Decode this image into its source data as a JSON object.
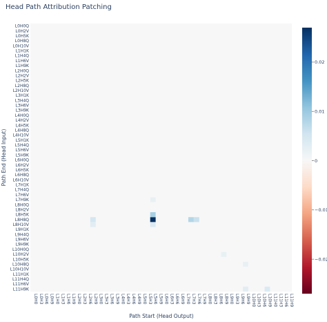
{
  "chart_data": {
    "type": "heatmap",
    "title": "Head Path Attribution Patching",
    "xlabel": "Path Start (Head Output)",
    "ylabel": "Path End (Head Input)",
    "y_labels": [
      "L0H0Q",
      "L0H2V",
      "L0H5K",
      "L0H8Q",
      "L0H10V",
      "L1H1K",
      "L1H4Q",
      "L1H6V",
      "L1H9K",
      "L2H0Q",
      "L2H2V",
      "L2H5K",
      "L2H8Q",
      "L2H10V",
      "L3H1K",
      "L3H4Q",
      "L3H6V",
      "L3H9K",
      "L4H0Q",
      "L4H2V",
      "L4H5K",
      "L4H8Q",
      "L4H10V",
      "L5H1K",
      "L5H4Q",
      "L5H6V",
      "L5H9K",
      "L6H0Q",
      "L6H2V",
      "L6H5K",
      "L6H8Q",
      "L6H10V",
      "L7H1K",
      "L7H4Q",
      "L7H6V",
      "L7H9K",
      "L8H0Q",
      "L8H2V",
      "L8H5K",
      "L8H8Q",
      "L8H10V",
      "L9H1K",
      "L9H4Q",
      "L9H6V",
      "L9H9K",
      "L10H0Q",
      "L10H2V",
      "L10H5K",
      "L10H8Q",
      "L10H10V",
      "L11H1K",
      "L11H4Q",
      "L11H6V",
      "L11H9K"
    ],
    "x_labels": [
      "L0H0",
      "L0H3",
      "L0H6",
      "L0H9",
      "L1H0",
      "L1H3",
      "L1H6",
      "L1H9",
      "L2H0",
      "L2H3",
      "L2H6",
      "L2H9",
      "L3H0",
      "L3H3",
      "L3H6",
      "L3H9",
      "L4H0",
      "L4H3",
      "L4H6",
      "L4H9",
      "L5H0",
      "L5H3",
      "L5H6",
      "L5H9",
      "L6H0",
      "L6H3",
      "L6H6",
      "L6H9",
      "L7H0",
      "L7H3",
      "L7H6",
      "L7H9",
      "L8H0",
      "L8H3",
      "L8H6",
      "L8H9",
      "L9H0",
      "L9H3",
      "L9H6",
      "L9H9",
      "L10H0",
      "L10H3",
      "L10H6",
      "L10H9",
      "L11H0",
      "L11H3",
      "L11H6",
      "L11H9"
    ],
    "zlim": [
      -0.027,
      0.027
    ],
    "colorbar": {
      "tick_values": [
        0.02,
        0.01,
        0,
        -0.01,
        -0.02
      ],
      "tick_labels": [
        "0.02",
        "0.01",
        "0",
        "−0.01",
        "−0.02"
      ],
      "colorscale": [
        "#053061",
        "#2166ac",
        "#4393c3",
        "#92c5de",
        "#d1e5f0",
        "#f7f7f7",
        "#fddbc7",
        "#f4a582",
        "#d6604d",
        "#b2182b",
        "#67001f"
      ]
    },
    "default_value": 0,
    "cells": [
      {
        "x": "L5H6",
        "y": "L8H8Q",
        "value": 0.027
      },
      {
        "x": "L5H6",
        "y": "L8H5K",
        "value": 0.009
      },
      {
        "x": "L5H6",
        "y": "L8H10V",
        "value": 0.004
      },
      {
        "x": "L5H6",
        "y": "L7H9K",
        "value": 0.002
      },
      {
        "x": "L2H9",
        "y": "L8H8Q",
        "value": 0.005
      },
      {
        "x": "L2H9",
        "y": "L8H10V",
        "value": 0.003
      },
      {
        "x": "L7H3",
        "y": "L8H8Q",
        "value": 0.008
      },
      {
        "x": "L7H6",
        "y": "L8H8Q",
        "value": 0.006
      },
      {
        "x": "L8H9",
        "y": "L10H2V",
        "value": 0.002
      },
      {
        "x": "L9H9",
        "y": "L10H8Q",
        "value": 0.002
      },
      {
        "x": "L9H9",
        "y": "L11H9K",
        "value": 0.003
      },
      {
        "x": "L10H9",
        "y": "L11H9K",
        "value": 0.004
      }
    ]
  }
}
